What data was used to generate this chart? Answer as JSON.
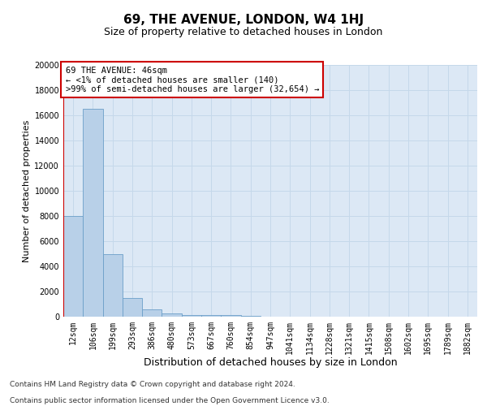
{
  "title": "69, THE AVENUE, LONDON, W4 1HJ",
  "subtitle": "Size of property relative to detached houses in London",
  "xlabel": "Distribution of detached houses by size in London",
  "ylabel": "Number of detached properties",
  "categories": [
    "12sqm",
    "106sqm",
    "199sqm",
    "293sqm",
    "386sqm",
    "480sqm",
    "573sqm",
    "667sqm",
    "760sqm",
    "854sqm",
    "947sqm",
    "1041sqm",
    "1134sqm",
    "1228sqm",
    "1321sqm",
    "1415sqm",
    "1508sqm",
    "1602sqm",
    "1695sqm",
    "1789sqm",
    "1882sqm"
  ],
  "values": [
    8000,
    16500,
    5000,
    1500,
    600,
    270,
    160,
    110,
    110,
    50,
    20,
    10,
    5,
    3,
    2,
    2,
    1,
    1,
    1,
    1,
    1
  ],
  "bar_color": "#b8d0e8",
  "bar_edge_color": "#6b9fc8",
  "grid_color": "#c5d8ea",
  "background_color": "#dce8f5",
  "vline_color": "#cc0000",
  "annotation_text": "69 THE AVENUE: 46sqm\n← <1% of detached houses are smaller (140)\n>99% of semi-detached houses are larger (32,654) →",
  "annotation_box_color": "#ffffff",
  "annotation_box_edge": "#cc0000",
  "ylim": [
    0,
    20000
  ],
  "yticks": [
    0,
    2000,
    4000,
    6000,
    8000,
    10000,
    12000,
    14000,
    16000,
    18000,
    20000
  ],
  "footer_line1": "Contains HM Land Registry data © Crown copyright and database right 2024.",
  "footer_line2": "Contains public sector information licensed under the Open Government Licence v3.0.",
  "title_fontsize": 11,
  "subtitle_fontsize": 9,
  "xlabel_fontsize": 9,
  "ylabel_fontsize": 8,
  "tick_fontsize": 7,
  "annotation_fontsize": 7.5,
  "footer_fontsize": 6.5
}
